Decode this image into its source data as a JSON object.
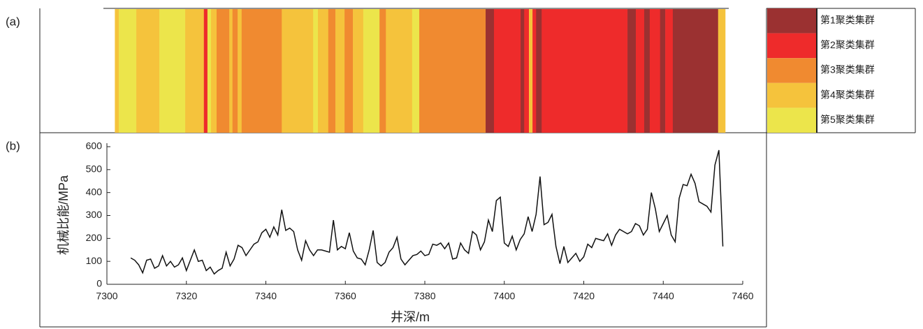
{
  "chart_data": [
    {
      "type": "strip",
      "label": "(a)",
      "series": [
        {
          "name": "第1聚类集群",
          "color": "#9b3131"
        },
        {
          "name": "第2聚类集群",
          "color": "#ee2b2b"
        },
        {
          "name": "第3聚类集群",
          "color": "#f08a30"
        },
        {
          "name": "第4聚类集群",
          "color": "#f5c33c"
        },
        {
          "name": "第5聚类集群",
          "color": "#ece54b"
        }
      ],
      "edges": [
        7302,
        7303,
        7307.4,
        7313.2,
        7319.7,
        7324.4,
        7325.3,
        7326.2,
        7327.6,
        7330.8,
        7331.6,
        7332.9,
        7333.9,
        7344,
        7351.9,
        7353.1,
        7355.7,
        7357.5,
        7359.8,
        7361.9,
        7364.5,
        7368.6,
        7370.2,
        7376.8,
        7378.6,
        7395.3,
        7397.4,
        7404.1,
        7405,
        7406.2,
        7407.1,
        7408,
        7409.4,
        7431,
        7433.1,
        7435.2,
        7436.6,
        7439.2,
        7440.5,
        7442.4,
        7453.8,
        7455.6
      ],
      "clusters": [
        4,
        5,
        4,
        5,
        4,
        2,
        5,
        4,
        3,
        4,
        3,
        4,
        3,
        4,
        5,
        4,
        3,
        4,
        3,
        4,
        5,
        3,
        4,
        5,
        3,
        1,
        2,
        1,
        2,
        4,
        2,
        1,
        2,
        1,
        2,
        1,
        2,
        1,
        2,
        1,
        4
      ]
    },
    {
      "type": "line",
      "label": "(b)",
      "xlabel": "井深/m",
      "ylabel": "机械比能/MPa",
      "xlim": [
        7300,
        7460
      ],
      "xticks": [
        7300,
        7320,
        7340,
        7360,
        7380,
        7400,
        7420,
        7440,
        7460
      ],
      "ylim": [
        0,
        600
      ],
      "yticks": [
        0,
        100,
        200,
        300,
        400,
        500,
        600
      ],
      "color": "#111111",
      "x": [
        7306,
        7307,
        7308,
        7309,
        7310,
        7311,
        7312,
        7313,
        7314,
        7315,
        7316,
        7317,
        7318,
        7319,
        7320,
        7321,
        7322,
        7323,
        7324,
        7325,
        7326,
        7327,
        7328,
        7329,
        7330,
        7331,
        7332,
        7333,
        7334,
        7335,
        7336,
        7337,
        7338,
        7339,
        7340,
        7341,
        7342,
        7343,
        7344,
        7345,
        7346,
        7347,
        7348,
        7349,
        7350,
        7351,
        7352,
        7353,
        7354,
        7355,
        7356,
        7357,
        7358,
        7359,
        7360,
        7361,
        7362,
        7363,
        7364,
        7365,
        7366,
        7367,
        7368,
        7369,
        7370,
        7371,
        7372,
        7373,
        7374,
        7375,
        7376,
        7377,
        7378,
        7379,
        7380,
        7381,
        7382,
        7383,
        7384,
        7385,
        7386,
        7387,
        7388,
        7389,
        7390,
        7391,
        7392,
        7393,
        7394,
        7395,
        7396,
        7397,
        7398,
        7399,
        7400,
        7401,
        7402,
        7403,
        7404,
        7405,
        7406,
        7407,
        7408,
        7409,
        7410,
        7411,
        7412,
        7413,
        7414,
        7415,
        7416,
        7417,
        7418,
        7419,
        7420,
        7421,
        7422,
        7423,
        7424,
        7425,
        7426,
        7427,
        7428,
        7429,
        7430,
        7431,
        7432,
        7433,
        7434,
        7435,
        7436,
        7437,
        7438,
        7439,
        7440,
        7441,
        7442,
        7443,
        7444,
        7445,
        7446,
        7447,
        7448,
        7449,
        7450,
        7451,
        7452,
        7453,
        7454,
        7455
      ],
      "values": [
        115,
        105,
        85,
        50,
        105,
        110,
        70,
        80,
        125,
        80,
        100,
        75,
        85,
        115,
        60,
        105,
        150,
        100,
        105,
        60,
        75,
        45,
        60,
        70,
        140,
        80,
        110,
        170,
        160,
        125,
        150,
        175,
        185,
        225,
        240,
        205,
        250,
        215,
        325,
        235,
        245,
        230,
        150,
        105,
        190,
        150,
        125,
        150,
        150,
        145,
        140,
        280,
        150,
        165,
        155,
        225,
        145,
        115,
        110,
        85,
        150,
        235,
        95,
        80,
        95,
        140,
        160,
        205,
        110,
        85,
        105,
        125,
        130,
        145,
        125,
        130,
        175,
        170,
        180,
        155,
        180,
        110,
        115,
        180,
        150,
        135,
        230,
        215,
        150,
        185,
        280,
        230,
        365,
        380,
        180,
        165,
        210,
        150,
        195,
        220,
        295,
        230,
        305,
        470,
        260,
        270,
        305,
        165,
        90,
        165,
        95,
        115,
        135,
        100,
        120,
        175,
        160,
        200,
        195,
        190,
        220,
        170,
        215,
        240,
        230,
        220,
        230,
        265,
        255,
        215,
        240,
        400,
        330,
        230,
        265,
        300,
        215,
        185,
        375,
        435,
        430,
        480,
        440,
        360,
        350,
        340,
        315,
        520,
        585,
        165
      ]
    }
  ]
}
